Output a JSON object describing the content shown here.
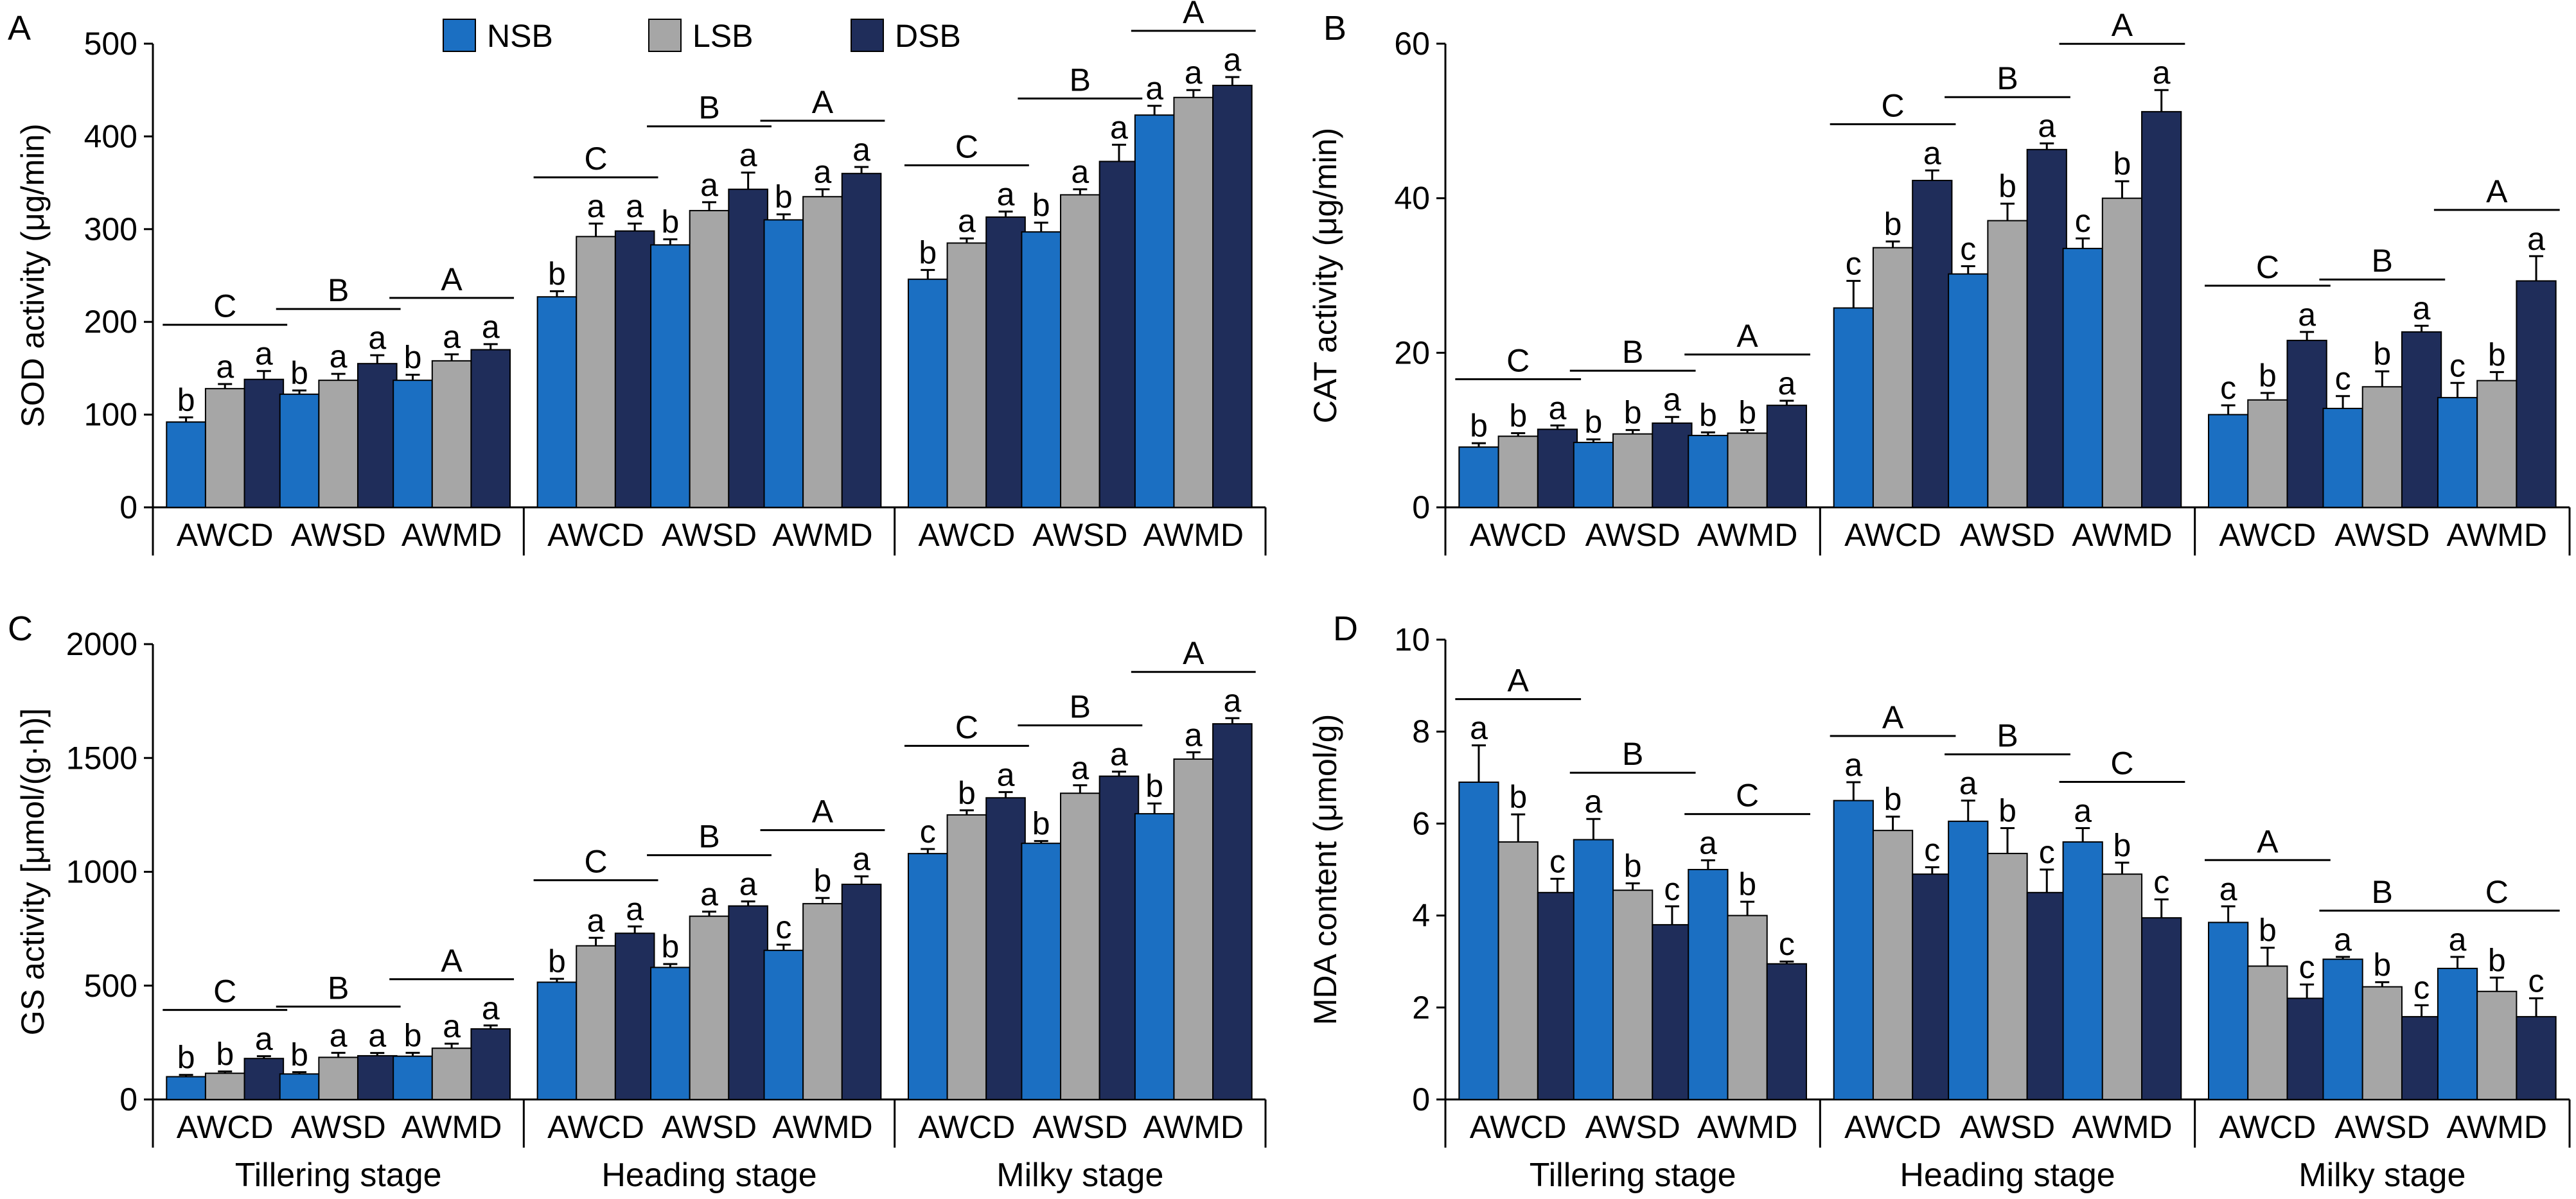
{
  "legend": [
    {
      "name": "NSB",
      "color": "#1b6fc2"
    },
    {
      "name": "LSB",
      "color": "#a6a6a6"
    },
    {
      "name": "DSB",
      "color": "#1f2d5a"
    }
  ],
  "stages": [
    "Tillering stage",
    "Heading stage",
    "Milky stage"
  ],
  "treatments": [
    "AWCD",
    "AWSD",
    "AWMD"
  ],
  "chart_data": [
    {
      "panel": "A",
      "type": "bar",
      "ylabel": "SOD activity (μg/min)",
      "ylim": [
        0,
        500
      ],
      "yticks": [
        0,
        100,
        200,
        300,
        400,
        500
      ],
      "series_names": [
        "NSB",
        "LSB",
        "DSB"
      ],
      "groups": [
        {
          "stage": "Tillering stage",
          "treatment": "AWCD",
          "values": [
            92,
            128,
            138
          ],
          "errors": [
            5,
            5,
            9
          ],
          "letters": [
            "b",
            "a",
            "a"
          ],
          "group_letter": "C"
        },
        {
          "stage": "Tillering stage",
          "treatment": "AWSD",
          "values": [
            122,
            137,
            155
          ],
          "errors": [
            4,
            7,
            9
          ],
          "letters": [
            "b",
            "a",
            "a"
          ],
          "group_letter": "B"
        },
        {
          "stage": "Tillering stage",
          "treatment": "AWMD",
          "values": [
            137,
            158,
            170
          ],
          "errors": [
            6,
            7,
            6
          ],
          "letters": [
            "b",
            "a",
            "a"
          ],
          "group_letter": "A"
        },
        {
          "stage": "Heading stage",
          "treatment": "AWCD",
          "values": [
            227,
            292,
            298
          ],
          "errors": [
            6,
            14,
            8
          ],
          "letters": [
            "b",
            "a",
            "a"
          ],
          "group_letter": "C"
        },
        {
          "stage": "Heading stage",
          "treatment": "AWSD",
          "values": [
            283,
            320,
            343
          ],
          "errors": [
            6,
            9,
            18
          ],
          "letters": [
            "b",
            "a",
            "a"
          ],
          "group_letter": "B"
        },
        {
          "stage": "Heading stage",
          "treatment": "AWMD",
          "values": [
            310,
            335,
            360
          ],
          "errors": [
            6,
            8,
            7
          ],
          "letters": [
            "b",
            "a",
            "a"
          ],
          "group_letter": "A"
        },
        {
          "stage": "Milky stage",
          "treatment": "AWCD",
          "values": [
            246,
            285,
            313
          ],
          "errors": [
            10,
            5,
            6
          ],
          "letters": [
            "b",
            "a",
            "a"
          ],
          "group_letter": "C"
        },
        {
          "stage": "Milky stage",
          "treatment": "AWSD",
          "values": [
            297,
            337,
            373
          ],
          "errors": [
            10,
            6,
            18
          ],
          "letters": [
            "b",
            "a",
            "a"
          ],
          "group_letter": "B"
        },
        {
          "stage": "Milky stage",
          "treatment": "AWMD",
          "values": [
            423,
            442,
            455
          ],
          "errors": [
            10,
            8,
            9
          ],
          "letters": [
            "a",
            "a",
            "a"
          ],
          "group_letter": "A"
        }
      ]
    },
    {
      "panel": "B",
      "type": "bar",
      "ylabel": "CAT activity (μg/min)",
      "ylim": [
        0,
        60
      ],
      "yticks": [
        0,
        20,
        40,
        60
      ],
      "series_names": [
        "NSB",
        "LSB",
        "DSB"
      ],
      "groups": [
        {
          "stage": "Tillering stage",
          "treatment": "AWCD",
          "values": [
            7.8,
            9.2,
            10.1
          ],
          "errors": [
            0.5,
            0.4,
            0.5
          ],
          "letters": [
            "b",
            "b",
            "a"
          ],
          "group_letter": "C"
        },
        {
          "stage": "Tillering stage",
          "treatment": "AWSD",
          "values": [
            8.4,
            9.5,
            10.9
          ],
          "errors": [
            0.4,
            0.5,
            0.8
          ],
          "letters": [
            "b",
            "b",
            "a"
          ],
          "group_letter": "B"
        },
        {
          "stage": "Tillering stage",
          "treatment": "AWMD",
          "values": [
            9.3,
            9.6,
            13.2
          ],
          "errors": [
            0.4,
            0.4,
            0.6
          ],
          "letters": [
            "b",
            "b",
            "a"
          ],
          "group_letter": "A"
        },
        {
          "stage": "Heading stage",
          "treatment": "AWCD",
          "values": [
            25.8,
            33.6,
            42.3
          ],
          "errors": [
            3.5,
            0.8,
            1.3
          ],
          "letters": [
            "c",
            "b",
            "a"
          ],
          "group_letter": "C"
        },
        {
          "stage": "Heading stage",
          "treatment": "AWSD",
          "values": [
            30.2,
            37.1,
            46.3
          ],
          "errors": [
            1.0,
            2.2,
            0.8
          ],
          "letters": [
            "c",
            "b",
            "a"
          ],
          "group_letter": "B"
        },
        {
          "stage": "Heading stage",
          "treatment": "AWMD",
          "values": [
            33.5,
            40.0,
            51.2
          ],
          "errors": [
            1.3,
            2.2,
            2.8
          ],
          "letters": [
            "c",
            "b",
            "a"
          ],
          "group_letter": "A"
        },
        {
          "stage": "Milky stage",
          "treatment": "AWCD",
          "values": [
            12.0,
            13.9,
            21.6
          ],
          "errors": [
            1.2,
            0.9,
            1.1
          ],
          "letters": [
            "c",
            "b",
            "a"
          ],
          "group_letter": "C"
        },
        {
          "stage": "Milky stage",
          "treatment": "AWSD",
          "values": [
            12.8,
            15.6,
            22.7
          ],
          "errors": [
            1.6,
            2.0,
            0.8
          ],
          "letters": [
            "c",
            "b",
            "a"
          ],
          "group_letter": "B"
        },
        {
          "stage": "Milky stage",
          "treatment": "AWMD",
          "values": [
            14.2,
            16.4,
            29.3
          ],
          "errors": [
            1.9,
            1.1,
            3.2
          ],
          "letters": [
            "c",
            "b",
            "a"
          ],
          "group_letter": "A"
        }
      ]
    },
    {
      "panel": "C",
      "type": "bar",
      "ylabel": "GS activity [μmol/(g·h)]",
      "ylim": [
        0,
        2000
      ],
      "yticks": [
        0,
        500,
        1000,
        1500,
        2000
      ],
      "series_names": [
        "NSB",
        "LSB",
        "DSB"
      ],
      "groups": [
        {
          "stage": "Tillering stage",
          "treatment": "AWCD",
          "values": [
            100,
            115,
            180
          ],
          "errors": [
            8,
            8,
            10
          ],
          "letters": [
            "b",
            "b",
            "a"
          ],
          "group_letter": "C"
        },
        {
          "stage": "Tillering stage",
          "treatment": "AWSD",
          "values": [
            112,
            185,
            192
          ],
          "errors": [
            8,
            20,
            12
          ],
          "letters": [
            "b",
            "a",
            "a"
          ],
          "group_letter": "B"
        },
        {
          "stage": "Tillering stage",
          "treatment": "AWMD",
          "values": [
            190,
            225,
            310
          ],
          "errors": [
            15,
            20,
            15
          ],
          "letters": [
            "b",
            "a",
            "a"
          ],
          "group_letter": "A"
        },
        {
          "stage": "Heading stage",
          "treatment": "AWCD",
          "values": [
            515,
            675,
            730
          ],
          "errors": [
            15,
            35,
            30
          ],
          "letters": [
            "b",
            "a",
            "a"
          ],
          "group_letter": "C"
        },
        {
          "stage": "Heading stage",
          "treatment": "AWSD",
          "values": [
            580,
            805,
            850
          ],
          "errors": [
            15,
            20,
            20
          ],
          "letters": [
            "b",
            "a",
            "a"
          ],
          "group_letter": "B"
        },
        {
          "stage": "Heading stage",
          "treatment": "AWMD",
          "values": [
            655,
            860,
            945
          ],
          "errors": [
            25,
            25,
            35
          ],
          "letters": [
            "c",
            "b",
            "a"
          ],
          "group_letter": "A"
        },
        {
          "stage": "Milky stage",
          "treatment": "AWCD",
          "values": [
            1080,
            1250,
            1325
          ],
          "errors": [
            20,
            20,
            25
          ],
          "letters": [
            "c",
            "b",
            "a"
          ],
          "group_letter": "C"
        },
        {
          "stage": "Milky stage",
          "treatment": "AWSD",
          "values": [
            1125,
            1345,
            1420
          ],
          "errors": [
            10,
            35,
            20
          ],
          "letters": [
            "b",
            "a",
            "a"
          ],
          "group_letter": "B"
        },
        {
          "stage": "Milky stage",
          "treatment": "AWMD",
          "values": [
            1255,
            1495,
            1650
          ],
          "errors": [
            45,
            30,
            25
          ],
          "letters": [
            "b",
            "a",
            "a"
          ],
          "group_letter": "A"
        }
      ]
    },
    {
      "panel": "D",
      "type": "bar",
      "ylabel": "MDA content (μmol/g)",
      "ylim": [
        0,
        10
      ],
      "yticks": [
        0,
        2,
        4,
        6,
        8,
        10
      ],
      "series_names": [
        "NSB",
        "LSB",
        "DSB"
      ],
      "groups": [
        {
          "stage": "Tillering stage",
          "treatment": "AWCD",
          "values": [
            6.9,
            5.6,
            4.5
          ],
          "errors": [
            0.8,
            0.6,
            0.3
          ],
          "letters": [
            "a",
            "b",
            "c"
          ],
          "group_letter": "A"
        },
        {
          "stage": "Tillering stage",
          "treatment": "AWSD",
          "values": [
            5.65,
            4.55,
            3.8
          ],
          "errors": [
            0.45,
            0.15,
            0.4
          ],
          "letters": [
            "a",
            "b",
            "c"
          ],
          "group_letter": "B"
        },
        {
          "stage": "Tillering stage",
          "treatment": "AWMD",
          "values": [
            5.0,
            4.0,
            2.95
          ],
          "errors": [
            0.2,
            0.3,
            0.05
          ],
          "letters": [
            "a",
            "b",
            "c"
          ],
          "group_letter": "C"
        },
        {
          "stage": "Heading stage",
          "treatment": "AWCD",
          "values": [
            6.5,
            5.85,
            4.9
          ],
          "errors": [
            0.4,
            0.3,
            0.15
          ],
          "letters": [
            "a",
            "b",
            "c"
          ],
          "group_letter": "A"
        },
        {
          "stage": "Heading stage",
          "treatment": "AWSD",
          "values": [
            6.05,
            5.35,
            4.5
          ],
          "errors": [
            0.45,
            0.55,
            0.5
          ],
          "letters": [
            "a",
            "b",
            "c"
          ],
          "group_letter": "B"
        },
        {
          "stage": "Heading stage",
          "treatment": "AWMD",
          "values": [
            5.6,
            4.9,
            3.95
          ],
          "errors": [
            0.3,
            0.25,
            0.4
          ],
          "letters": [
            "a",
            "b",
            "c"
          ],
          "group_letter": "C"
        },
        {
          "stage": "Milky stage",
          "treatment": "AWCD",
          "values": [
            3.85,
            2.9,
            2.2
          ],
          "errors": [
            0.35,
            0.4,
            0.3
          ],
          "letters": [
            "a",
            "b",
            "c"
          ],
          "group_letter": "A"
        },
        {
          "stage": "Milky stage",
          "treatment": "AWSD",
          "values": [
            3.05,
            2.45,
            1.8
          ],
          "errors": [
            0.05,
            0.1,
            0.25
          ],
          "letters": [
            "a",
            "b",
            "c"
          ],
          "group_letter": "B"
        },
        {
          "stage": "Milky stage",
          "treatment": "AWMD",
          "values": [
            2.85,
            2.35,
            1.8
          ],
          "errors": [
            0.25,
            0.3,
            0.4
          ],
          "letters": [
            "a",
            "b",
            "c"
          ],
          "group_letter": "C"
        }
      ]
    }
  ]
}
